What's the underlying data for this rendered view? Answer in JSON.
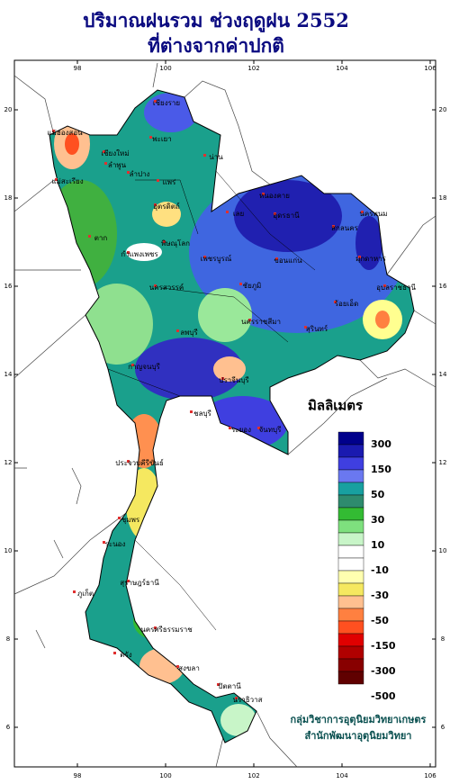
{
  "header": {
    "title_lines": [
      "ปริมาณฝนรวม ช่วงฤดูฝน 2552",
      "ที่ต่างจากค่าปกติ"
    ]
  },
  "map": {
    "longitude_ticks": [
      98,
      100,
      102,
      104,
      106
    ],
    "latitude_ticks": [
      20,
      18,
      16,
      14,
      12,
      10,
      8,
      6
    ],
    "place_labels": [
      "เชียงราย",
      "พะเยา",
      "น่าน",
      "แม่ฮ่องสอน",
      "เชียงใหม่",
      "ลำพูน",
      "ลำปาง",
      "แพร่",
      "แม่สะเรียง",
      "อุตรดิตถ์",
      "ตาก",
      "พิษณุโลก",
      "กำแพงเพชร",
      "เพชรบูรณ์",
      "หนองคาย",
      "อุดรธานี",
      "เลย",
      "สกลนคร",
      "นครพนม",
      "มุกดาหาร",
      "ขอนแก่น",
      "ชัยภูมิ",
      "นครสวรรค์",
      "ร้อยเอ็ด",
      "อุบลราชธานี",
      "ลพบุรี",
      "นครราชสีมา",
      "สุรินทร์",
      "กาญจนบุรี",
      "ปราจีนบุรี",
      "ชลบุรี",
      "ระยอง",
      "จันทบุรี",
      "ประจวบคีรีขันธ์",
      "ชุมพร",
      "ระนอง",
      "สุราษฎร์ธานี",
      "ภูเก็ต",
      "นครศรีธรรมราช",
      "ตรัง",
      "สงขลา",
      "ปัตตานี",
      "นราธิวาส"
    ]
  },
  "legend": {
    "title": "มิลลิเมตร",
    "labels": [
      300,
      150,
      50,
      30,
      10,
      -10,
      -30,
      -50,
      -150,
      -300,
      -500
    ],
    "colors": [
      "#00008b",
      "#1a1ab0",
      "#3f3fe0",
      "#6a78f0",
      "#18a0a0",
      "#2e8b6e",
      "#33bb33",
      "#7ee07e",
      "#c8f5c8",
      "#ffffff",
      "#ffffff",
      "#ffffb0",
      "#f5e860",
      "#ffc090",
      "#ff8040",
      "#ff5020",
      "#e00000",
      "#b00000",
      "#880000",
      "#600000"
    ]
  },
  "credit": {
    "lines": [
      "กลุ่มวิชาการอุตุนิยมวิทยาเกษตร",
      "สำนักพัฒนาอุตุนิยมวิทยา"
    ]
  }
}
